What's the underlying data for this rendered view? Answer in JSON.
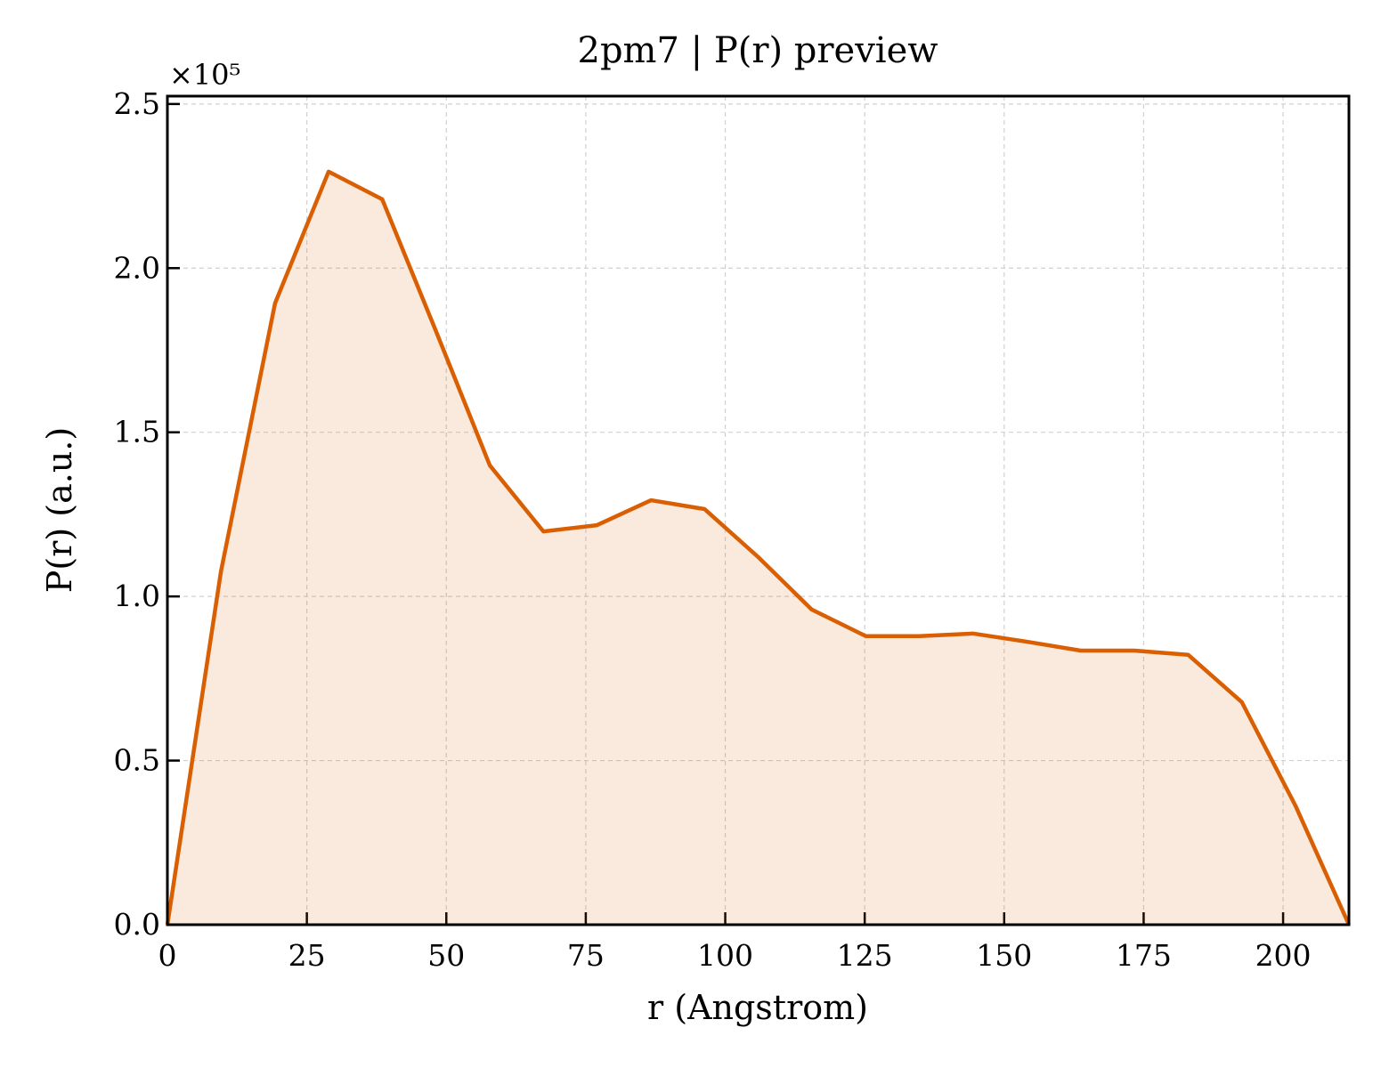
{
  "chart_data": {
    "type": "line",
    "title": "2pm7 | P(r) preview",
    "xlabel": "r (Angstrom)",
    "ylabel": "P(r) (a.u.)",
    "y_offset_text": "×10⁵",
    "x": [
      0,
      9.6,
      19.3,
      28.9,
      38.5,
      48.1,
      57.8,
      67.4,
      77.0,
      86.7,
      96.3,
      105.9,
      115.5,
      125.2,
      134.8,
      144.4,
      154.1,
      163.7,
      173.3,
      183.0,
      192.6,
      202.2,
      211.8
    ],
    "series": [
      {
        "color": "#d95f02",
        "fill_alpha": 0.13,
        "values": [
          0,
          1.076,
          1.893,
          2.294,
          2.21,
          1.81,
          1.399,
          1.198,
          1.217,
          1.293,
          1.266,
          1.12,
          0.96,
          0.879,
          0.879,
          0.887,
          0.862,
          0.835,
          0.835,
          0.822,
          0.678,
          0.363,
          0
        ]
      }
    ],
    "xlim": [
      0,
      211.8
    ],
    "ylim": [
      0,
      2.524
    ],
    "xticks": [
      0,
      25,
      50,
      75,
      100,
      125,
      150,
      175,
      200
    ],
    "yticks": [
      {
        "value": 0,
        "label": "0.0"
      },
      0.5,
      {
        "value": 1,
        "label": "1.0"
      },
      1.5,
      {
        "value": 2,
        "label": "2.0"
      },
      2.5
    ],
    "grid": true
  }
}
